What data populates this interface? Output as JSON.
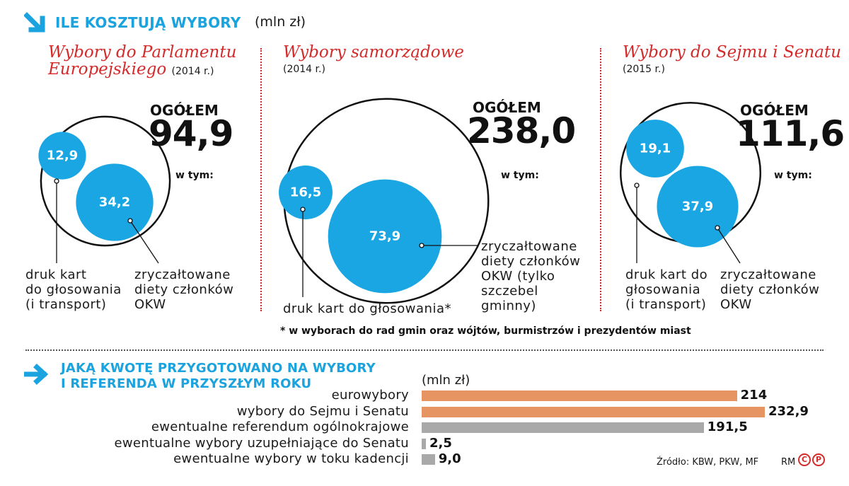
{
  "colors": {
    "accent": "#1aa3de",
    "title_red": "#d42a2a",
    "circle_blue": "#19a6e3",
    "bar_orange": "#e69461",
    "bar_gray": "#a9a9a9"
  },
  "header": {
    "title": "ILE KOSZTUJĄ WYBORY",
    "unit": "(mln zł)"
  },
  "panels": [
    {
      "title_line1": "Wybory do Parlamentu",
      "title_line2": "Europejskiego",
      "year": "(2014 r.)",
      "total_label": "OGÓŁEM",
      "total_value": "94,9",
      "wtym": "w tym:",
      "small_value": "12,9",
      "large_value": "34,2",
      "small_desc": [
        "druk kart",
        "do głosowania",
        "(i transport)"
      ],
      "large_desc": [
        "zryczałtowane",
        "diety członków",
        "OKW"
      ]
    },
    {
      "title_line1": "Wybory samorządowe",
      "year": "(2014 r.)",
      "total_label": "OGÓŁEM",
      "total_value": "238,0",
      "wtym": "w tym:",
      "small_value": "16,5",
      "large_value": "73,9",
      "small_desc": [
        "druk kart do głosowania*"
      ],
      "large_desc": [
        "zryczałtowane",
        "diety członków",
        "OKW (tylko",
        "szczebel",
        "gminny)"
      ]
    },
    {
      "title_line1": "Wybory do Sejmu i Senatu",
      "year": "(2015 r.)",
      "total_label": "OGÓŁEM",
      "total_value": "111,6",
      "wtym": "w tym:",
      "small_value": "19,1",
      "large_value": "37,9",
      "small_desc": [
        "druk kart do",
        "głosowania",
        "(i transport)"
      ],
      "large_desc": [
        "zryczałtowane",
        "diety członków",
        "OKW"
      ]
    }
  ],
  "footnote": "* w wyborach do rad gmin oraz wójtów, burmistrzów i prezydentów miast",
  "section2": {
    "title_line1": "JAKĄ KWOTĘ PRZYGOTOWANO NA WYBORY",
    "title_line2": "I REFERENDA W PRZYSZŁYM ROKU",
    "unit": "(mln zł)"
  },
  "chart_data": [
    {
      "type": "pie",
      "title": "Wybory do Parlamentu Europejskiego (2014 r.)",
      "total": 94.9,
      "categories": [
        "druk kart do głosowania (i transport)",
        "zryczałtowane diety członków OKW"
      ],
      "values": [
        12.9,
        34.2
      ]
    },
    {
      "type": "pie",
      "title": "Wybory samorządowe (2014 r.)",
      "total": 238.0,
      "categories": [
        "druk kart do głosowania*",
        "zryczałtowane diety członków OKW (tylko szczebel gminny)"
      ],
      "values": [
        16.5,
        73.9
      ]
    },
    {
      "type": "pie",
      "title": "Wybory do Sejmu i Senatu (2015 r.)",
      "total": 111.6,
      "categories": [
        "druk kart do głosowania (i transport)",
        "zryczałtowane diety członków OKW"
      ],
      "values": [
        19.1,
        37.9
      ]
    },
    {
      "type": "bar",
      "orientation": "horizontal",
      "title": "JAKĄ KWOTĘ PRZYGOTOWANO NA WYBORY I REFERENDA W PRZYSZŁYM ROKU",
      "ylabel": "(mln zł)",
      "categories": [
        "eurowybory",
        "wybory do Sejmu i Senatu",
        "ewentualne referendum ogólnokrajowe",
        "ewentualne wybory uzupełniające do Senatu",
        "ewentualne wybory w toku kadencji"
      ],
      "values": [
        214,
        232.9,
        191.5,
        2.5,
        9.0
      ],
      "value_labels": [
        "214",
        "232,9",
        "191,5",
        "2,5",
        "9,0"
      ],
      "bar_colors": [
        "#e69461",
        "#e69461",
        "#a9a9a9",
        "#a9a9a9",
        "#a9a9a9"
      ],
      "xlim": [
        0,
        232.9
      ]
    }
  ],
  "source": "Źródło: KBW, PKW, MF",
  "credit": "RM",
  "credit_badges": [
    "C",
    "P"
  ]
}
